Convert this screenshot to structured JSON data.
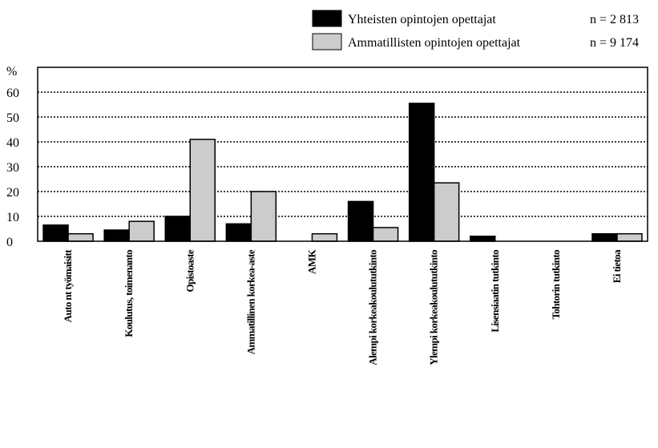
{
  "chart_data": {
    "type": "bar",
    "y_unit_label": "%",
    "ylim": [
      0,
      60
    ],
    "yticks": [
      0,
      10,
      20,
      30,
      40,
      50,
      60
    ],
    "grid": "dotted horizontal",
    "legend_position": "top-right",
    "categories": [
      "Auto nt työmaisitt",
      "Koulutus, toimenanto",
      "Opistoaste",
      "Ammatillinen korkea-aste",
      "AMK",
      "Alempi korkeakoulututkinto",
      "Ylempi korkeakoulututkinto",
      "Lisensiaatin tutkinto",
      "Tohtorin tutkinto",
      "Ei tietoa"
    ],
    "series": [
      {
        "name": "Yhteisten opintojen opettajat",
        "n_label": "n = 2 813",
        "color": "#000000",
        "values": [
          6.5,
          4.5,
          10,
          7,
          0,
          16,
          55.5,
          2,
          0,
          3
        ]
      },
      {
        "name": "Ammatillisten opintojen opettajat",
        "n_label": "n = 9 174",
        "color": "#cccccc",
        "values": [
          3,
          8,
          41,
          20,
          3,
          5.5,
          23.5,
          0,
          0,
          3
        ]
      }
    ]
  }
}
